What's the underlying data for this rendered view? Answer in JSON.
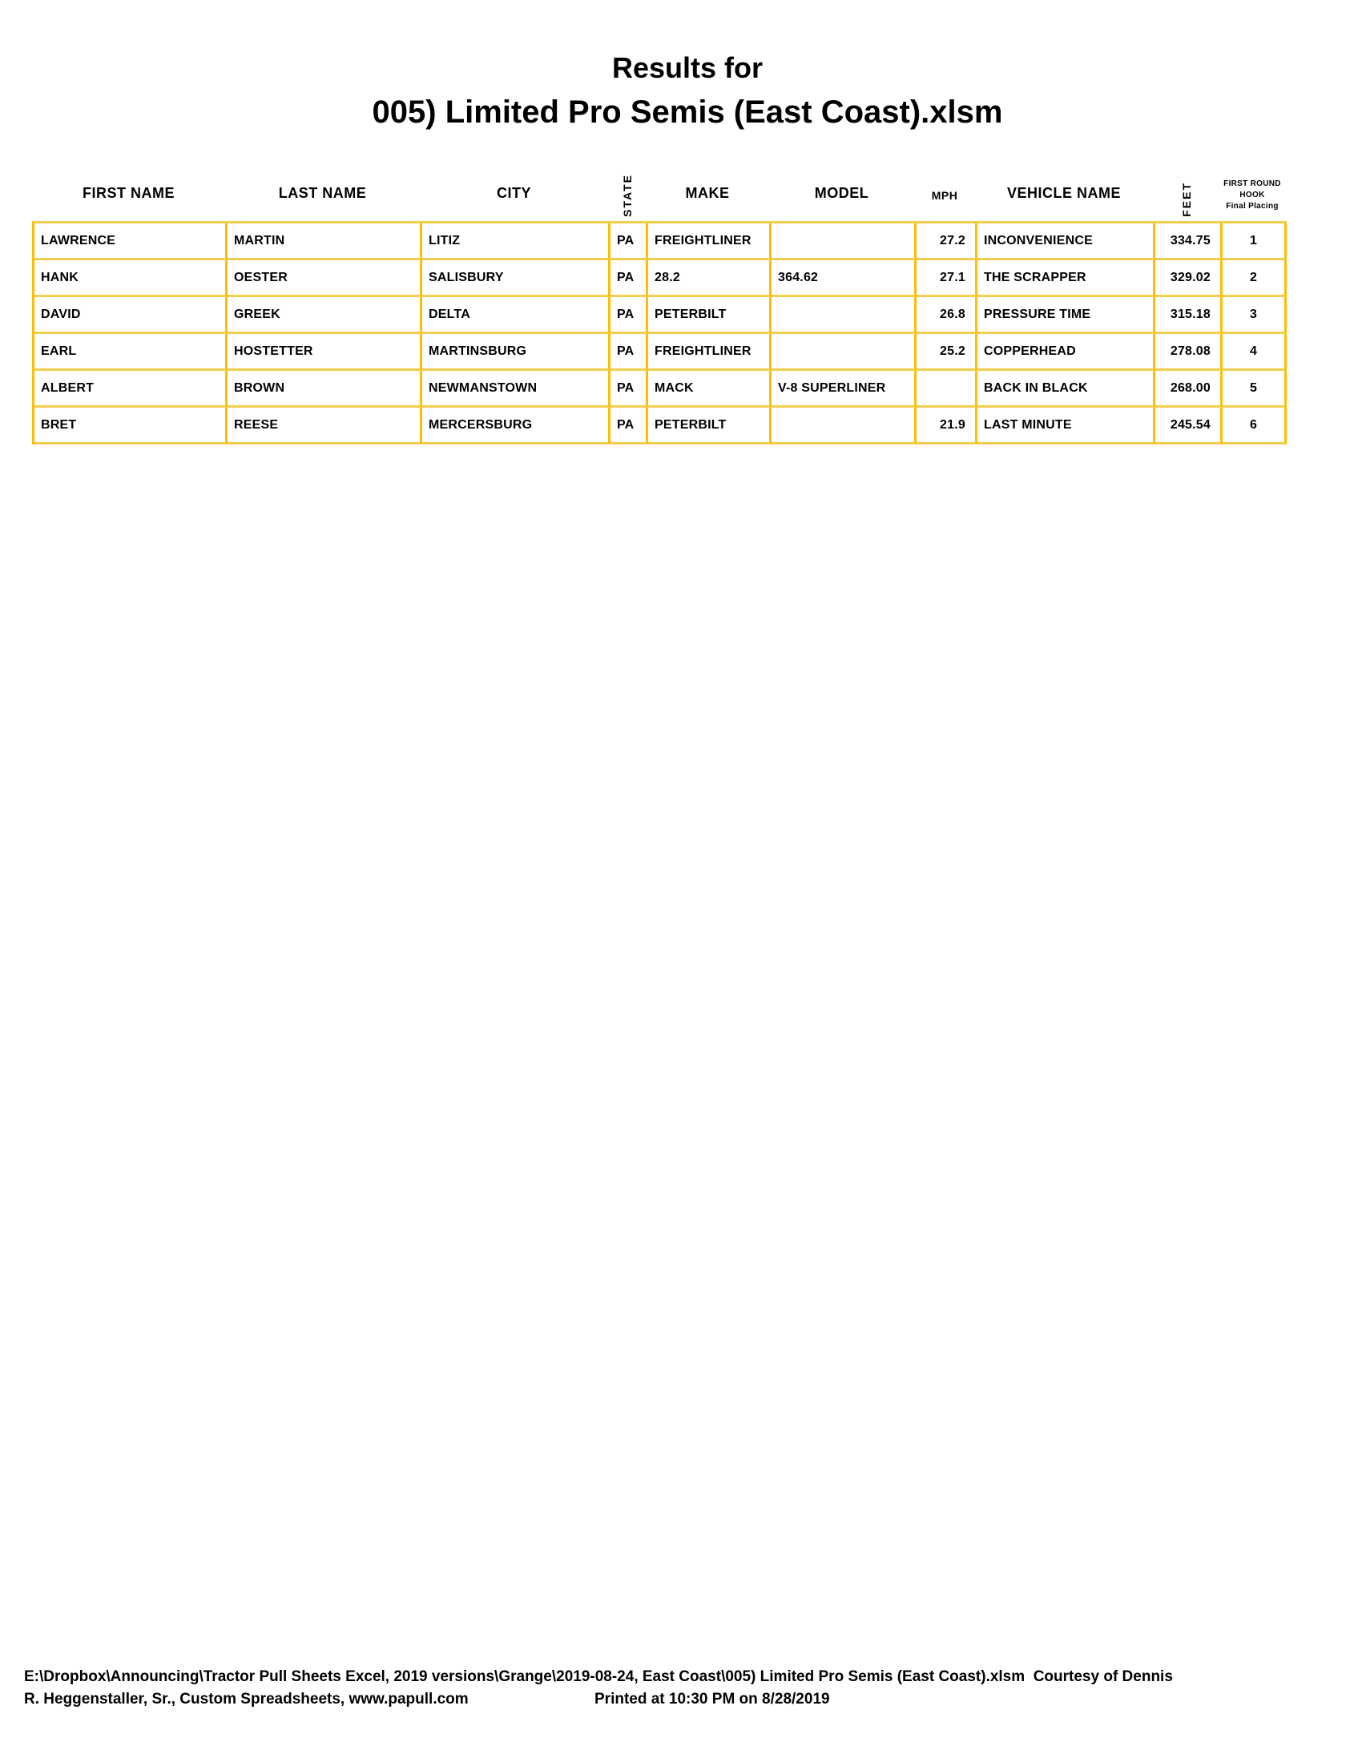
{
  "title": {
    "line1": "Results for",
    "line2": "005) Limited Pro Semis (East Coast).xlsm"
  },
  "table": {
    "headers": {
      "first_name": "FIRST NAME",
      "last_name": "LAST NAME",
      "city": "CITY",
      "state": "STATE",
      "make": "MAKE",
      "model": "MODEL",
      "mph": "MPH",
      "vehicle_name": "VEHICLE NAME",
      "feet": "FEET",
      "placing_lines": [
        "FIRST ROUND",
        "HOOK",
        "Final Placing"
      ]
    },
    "rows": [
      {
        "first_name": "LAWRENCE",
        "last_name": "MARTIN",
        "city": "LITIZ",
        "state": "PA",
        "make": "FREIGHTLINER",
        "model": "",
        "mph": "27.2",
        "vehicle_name": "INCONVENIENCE",
        "feet": "334.75",
        "placing": "1"
      },
      {
        "first_name": "HANK",
        "last_name": "OESTER",
        "city": "SALISBURY",
        "state": "PA",
        "make": "28.2",
        "model": "364.62",
        "mph": "27.1",
        "vehicle_name": "THE SCRAPPER",
        "feet": "329.02",
        "placing": "2"
      },
      {
        "first_name": "DAVID",
        "last_name": "GREEK",
        "city": "DELTA",
        "state": "PA",
        "make": "PETERBILT",
        "model": "",
        "mph": "26.8",
        "vehicle_name": "PRESSURE TIME",
        "feet": "315.18",
        "placing": "3"
      },
      {
        "first_name": "EARL",
        "last_name": "HOSTETTER",
        "city": "MARTINSBURG",
        "state": "PA",
        "make": "FREIGHTLINER",
        "model": "",
        "mph": "25.2",
        "vehicle_name": "COPPERHEAD",
        "feet": "278.08",
        "placing": "4"
      },
      {
        "first_name": "ALBERT",
        "last_name": "BROWN",
        "city": "NEWMANSTOWN",
        "state": "PA",
        "make": "MACK",
        "model": "V-8 SUPERLINER",
        "mph": "",
        "vehicle_name": "BACK IN BLACK",
        "feet": "268.00",
        "placing": "5"
      },
      {
        "first_name": "BRET",
        "last_name": "REESE",
        "city": "MERCERSBURG",
        "state": "PA",
        "make": "PETERBILT",
        "model": "",
        "mph": "21.9",
        "vehicle_name": "LAST MINUTE",
        "feet": "245.54",
        "placing": "6"
      }
    ]
  },
  "footer": {
    "line1": "E:\\Dropbox\\Announcing\\Tractor Pull Sheets Excel, 2019 versions\\Grange\\2019-08-24, East Coast\\005) Limited Pro Semis (East Coast).xlsm  Courtesy of Dennis",
    "line2": "R. Heggenstaller, Sr., Custom Spreadsheets, www.papull.com",
    "printed": "Printed at 10:30 PM on 8/28/2019"
  },
  "colors": {
    "grid_vertical": "#FFBE00",
    "grid_horizontal": "#F3CD4E",
    "text": "#000000"
  }
}
